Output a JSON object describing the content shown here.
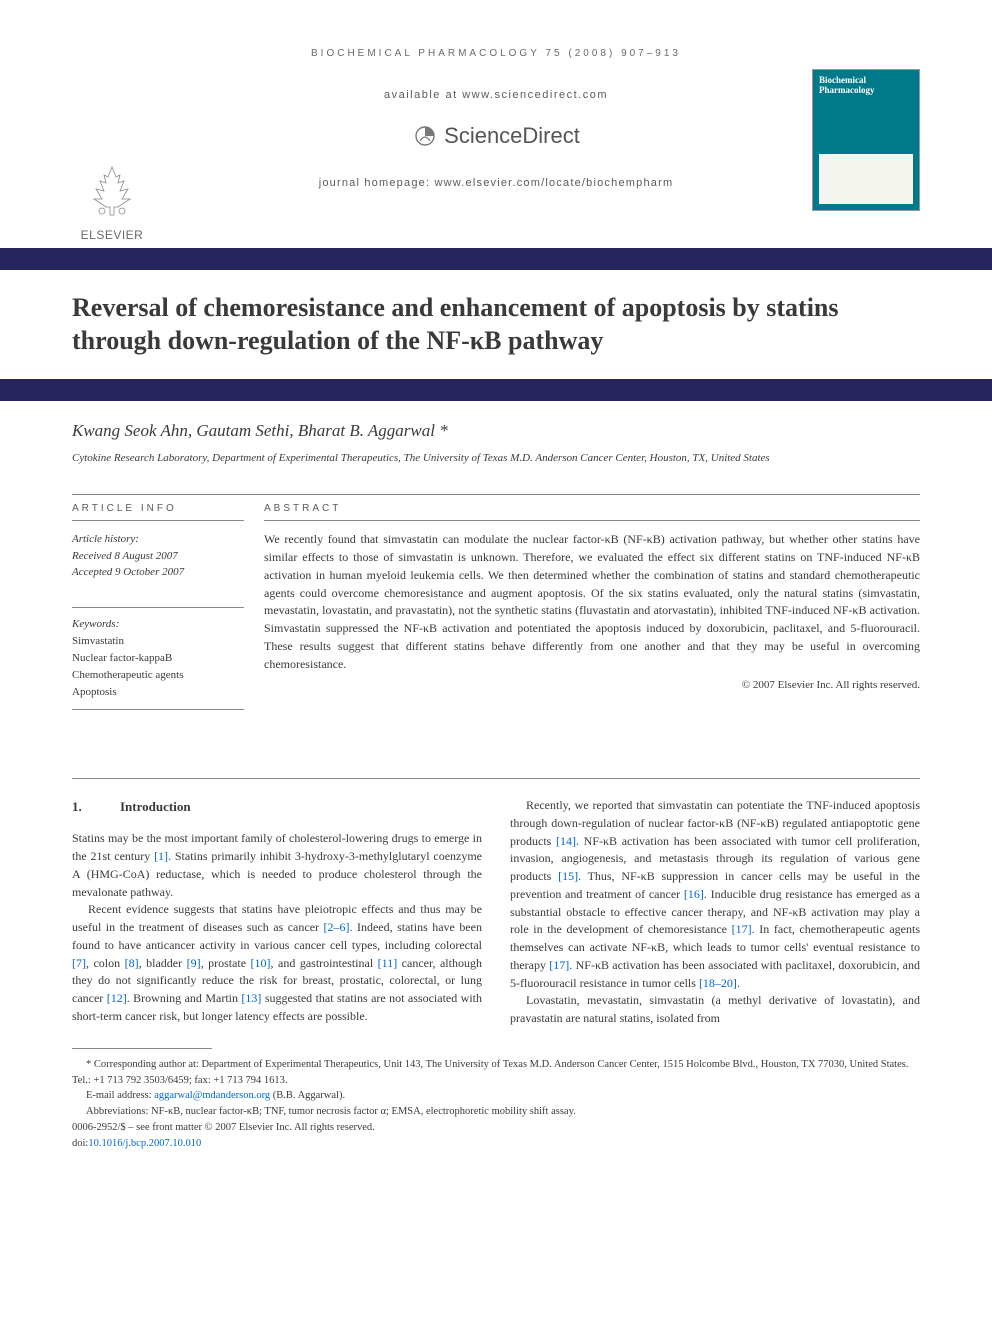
{
  "colors": {
    "band": "#26255e",
    "cover": "#007a8a",
    "link": "#0066cc",
    "text": "#3a3a3a",
    "faint": "#6a6a6a"
  },
  "header": {
    "running": "BIOCHEMICAL PHARMACOLOGY 75 (2008) 907–913",
    "available": "available at www.sciencedirect.com",
    "sd_brand": "ScienceDirect",
    "homepage": "journal homepage: www.elsevier.com/locate/biochempharm",
    "elsevier": "ELSEVIER",
    "cover_title": "Biochemical Pharmacology"
  },
  "title": "Reversal of chemoresistance and enhancement of apoptosis by statins through down-regulation of the NF-κB pathway",
  "authors": "Kwang Seok Ahn, Gautam Sethi, Bharat B. Aggarwal *",
  "affiliation": "Cytokine Research Laboratory, Department of Experimental Therapeutics, The University of Texas M.D. Anderson Cancer Center, Houston, TX, United States",
  "info": {
    "head": "ARTICLE INFO",
    "history_label": "Article history:",
    "received": "Received 8 August 2007",
    "accepted": "Accepted 9 October 2007",
    "keywords_label": "Keywords:",
    "keywords": [
      "Simvastatin",
      "Nuclear factor-kappaB",
      "Chemotherapeutic agents",
      "Apoptosis"
    ]
  },
  "abstract": {
    "head": "ABSTRACT",
    "text": "We recently found that simvastatin can modulate the nuclear factor-κB (NF-κB) activation pathway, but whether other statins have similar effects to those of simvastatin is unknown. Therefore, we evaluated the effect six different statins on TNF-induced NF-κB activation in human myeloid leukemia cells. We then determined whether the combination of statins and standard chemotherapeutic agents could overcome chemoresistance and augment apoptosis. Of the six statins evaluated, only the natural statins (simvastatin, mevastatin, lovastatin, and pravastatin), not the synthetic statins (fluvastatin and atorvastatin), inhibited TNF-induced NF-κB activation. Simvastatin suppressed the NF-κB activation and potentiated the apoptosis induced by doxorubicin, paclitaxel, and 5-fluorouracil. These results suggest that different statins behave differently from one another and that they may be useful in overcoming chemoresistance.",
    "copyright": "© 2007 Elsevier Inc. All rights reserved."
  },
  "section": {
    "num": "1.",
    "title": "Introduction"
  },
  "body": {
    "p1": "Statins may be the most important family of cholesterol-lowering drugs to emerge in the 21st century [1]. Statins primarily inhibit 3-hydroxy-3-methylglutaryl coenzyme A (HMG-CoA) reductase, which is needed to produce cholesterol through the mevalonate pathway.",
    "p2": "Recent evidence suggests that statins have pleiotropic effects and thus may be useful in the treatment of diseases such as cancer [2–6]. Indeed, statins have been found to have anticancer activity in various cancer cell types, including colorectal [7], colon [8], bladder [9], prostate [10], and gastrointestinal [11] cancer, although they do not significantly reduce the risk for breast, prostatic, colorectal, or lung cancer [12]. Browning and Martin [13] suggested that statins are not associated with short-term cancer risk, but longer latency effects are possible.",
    "p3": "Recently, we reported that simvastatin can potentiate the TNF-induced apoptosis through down-regulation of nuclear factor-κB (NF-κB) regulated antiapoptotic gene products [14]. NF-κB activation has been associated with tumor cell proliferation, invasion, angiogenesis, and metastasis through its regulation of various gene products [15]. Thus, NF-κB suppression in cancer cells may be useful in the prevention and treatment of cancer [16]. Inducible drug resistance has emerged as a substantial obstacle to effective cancer therapy, and NF-κB activation may play a role in the development of chemoresistance [17]. In fact, chemotherapeutic agents themselves can activate NF-κB, which leads to tumor cells' eventual resistance to therapy [17]. NF-κB activation has been associated with paclitaxel, doxorubicin, and 5-fluorouracil resistance in tumor cells [18–20].",
    "p4": "Lovastatin, mevastatin, simvastatin (a methyl derivative of lovastatin), and pravastatin are natural statins, isolated from"
  },
  "footnotes": {
    "corr": "* Corresponding author at: Department of Experimental Therapeutics, Unit 143, The University of Texas M.D. Anderson Cancer Center, 1515 Holcombe Blvd., Houston, TX 77030, United States. Tel.: +1 713 792 3503/6459; fax: +1 713 794 1613.",
    "email_label": "E-mail address: ",
    "email": "aggarwal@mdanderson.org",
    "email_suffix": " (B.B. Aggarwal).",
    "abbrev": "Abbreviations:  NF-κB, nuclear factor-κB; TNF, tumor necrosis factor α; EMSA, electrophoretic mobility shift assay.",
    "issn": "0006-2952/$ – see front matter © 2007 Elsevier Inc. All rights reserved.",
    "doi_label": "doi:",
    "doi": "10.1016/j.bcp.2007.10.010"
  }
}
